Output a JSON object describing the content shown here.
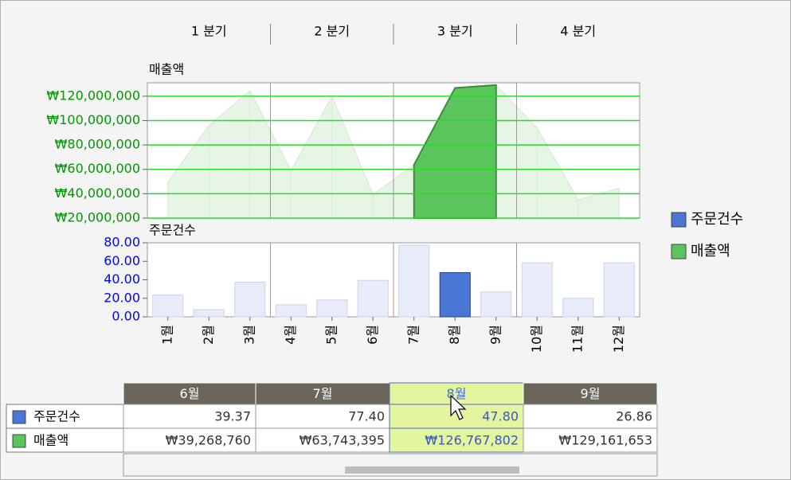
{
  "quarters": [
    {
      "label": "1 분기",
      "span": 3
    },
    {
      "label": "2 분기",
      "span": 3
    },
    {
      "label": "3 분기",
      "span": 3
    },
    {
      "label": "4 분기",
      "span": 3
    }
  ],
  "chart_data": [
    {
      "type": "area",
      "title": "매출액",
      "series": [
        {
          "name": "매출액",
          "color": "#5cc45c",
          "faded_color": "#e6f5e6",
          "values": [
            49700000,
            96000000,
            124500000,
            59000000,
            120000000,
            39268760,
            63743395,
            126767802,
            129161653,
            94000000,
            35000000,
            44500000
          ]
        }
      ],
      "ylim": [
        20000000,
        131000000
      ],
      "yticks": [
        {
          "value": 20000000,
          "label": "₩20,000,000"
        },
        {
          "value": 40000000,
          "label": "₩40,000,000"
        },
        {
          "value": 60000000,
          "label": "₩60,000,000"
        },
        {
          "value": 80000000,
          "label": "₩80,000,000"
        },
        {
          "value": 100000000,
          "label": "₩100,000,000"
        },
        {
          "value": 120000000,
          "label": "₩120,000,000"
        }
      ],
      "grid": true,
      "grid_color": "#22dd22",
      "tick_color": "#009900",
      "highlight": [
        6,
        8
      ]
    },
    {
      "type": "bar",
      "title": "주문건수",
      "categories": [
        "1월",
        "2월",
        "3월",
        "4월",
        "5월",
        "6월",
        "7월",
        "8월",
        "9월",
        "10월",
        "11월",
        "12월"
      ],
      "series": [
        {
          "name": "주문건수",
          "color": "#4a76d4",
          "faded_color": "#e8ebf8",
          "values": [
            23.5,
            7.8,
            37.4,
            13,
            18.3,
            39.37,
            77.4,
            47.8,
            26.86,
            58.3,
            20,
            58.3
          ]
        }
      ],
      "ylim": [
        0,
        80
      ],
      "yticks": [
        {
          "value": 0,
          "label": "0.00"
        },
        {
          "value": 20,
          "label": "20.00"
        },
        {
          "value": 40,
          "label": "40.00"
        },
        {
          "value": 60,
          "label": "60.00"
        },
        {
          "value": 80,
          "label": "80.00"
        }
      ],
      "grid": false,
      "tick_color": "#0000ff",
      "highlight": [
        7,
        7
      ]
    }
  ],
  "table": {
    "columns": [
      "6월",
      "7월",
      "8월",
      "9월"
    ],
    "selected_column": 2,
    "rows": [
      [
        "주문건수",
        "39.37",
        "77.40",
        "47.80",
        "26.86"
      ],
      [
        "매출액",
        "₩39,268,760",
        "₩63,743,395",
        "₩126,767,802",
        "₩129,161,653"
      ]
    ]
  }
}
